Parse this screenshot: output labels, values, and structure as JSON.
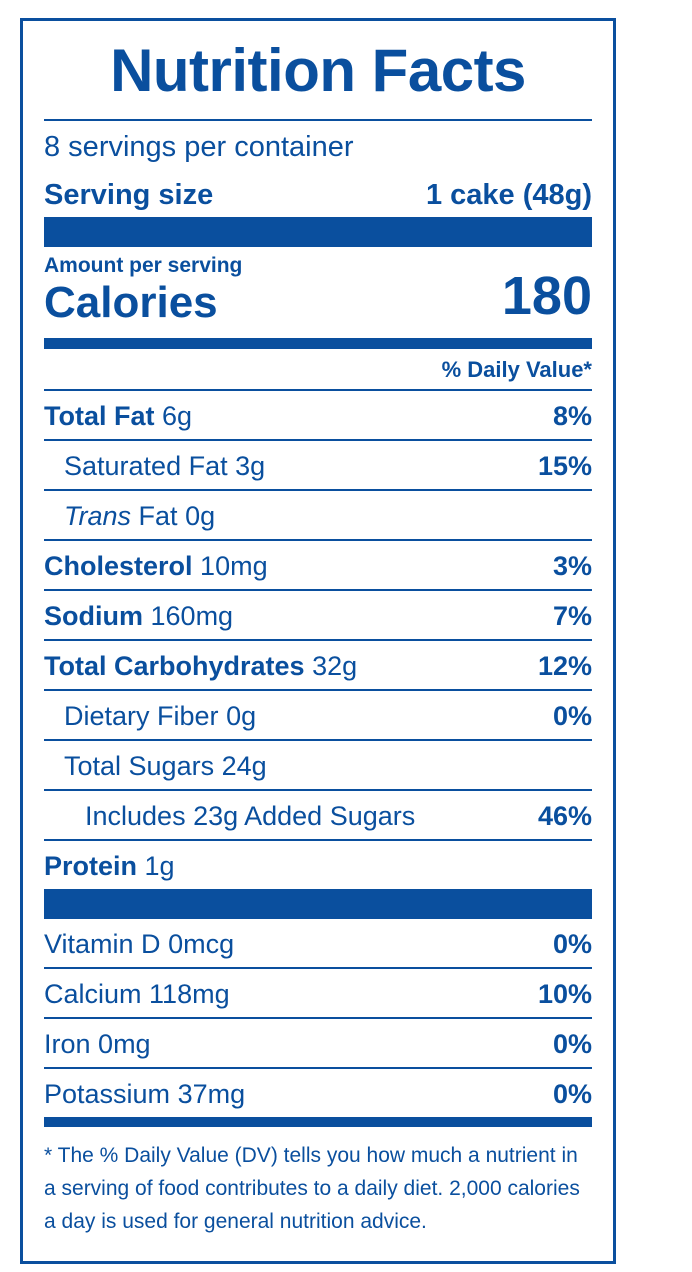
{
  "label": {
    "title": "Nutrition Facts",
    "servings_per_container": "8 servings per container",
    "serving_size_label": "Serving size",
    "serving_size_value": "1 cake (48g)",
    "amount_per_serving": "Amount per serving",
    "calories_label": "Calories",
    "calories_value": "180",
    "daily_value_header": "% Daily Value*"
  },
  "nutrients": [
    {
      "name": "Total Fat",
      "amount": "6g",
      "dv": "8%"
    },
    {
      "name": "Saturated Fat",
      "amount": "3g",
      "dv": "15%"
    },
    {
      "name": "Trans",
      "name_rest": "Fat",
      "amount": "0g",
      "dv": ""
    },
    {
      "name": "Cholesterol",
      "amount": "10mg",
      "dv": "3%"
    },
    {
      "name": "Sodium",
      "amount": "160mg",
      "dv": "7%"
    },
    {
      "name": "Total Carbohydrates",
      "amount": "32g",
      "dv": "12%"
    },
    {
      "name": "Dietary Fiber",
      "amount": "0g",
      "dv": "0%"
    },
    {
      "name": "Total Sugars",
      "amount": "24g",
      "dv": ""
    },
    {
      "name": "Includes 23g Added Sugars",
      "amount": "",
      "dv": "46%"
    },
    {
      "name": "Protein",
      "amount": "1g",
      "dv": ""
    }
  ],
  "vitamins": [
    {
      "name": "Vitamin D",
      "amount": "0mcg",
      "dv": "0%"
    },
    {
      "name": "Calcium",
      "amount": "118mg",
      "dv": "10%"
    },
    {
      "name": "Iron",
      "amount": "0mg",
      "dv": "0%"
    },
    {
      "name": "Potassium",
      "amount": "37mg",
      "dv": "0%"
    }
  ],
  "footnote": "* The % Daily Value (DV) tells you how much a nutrient in a serving of food contributes to a daily diet. 2,000 calories a day is used for general nutrition advice.",
  "colors": {
    "ink": "#0a4f9e",
    "background": "#ffffff"
  }
}
